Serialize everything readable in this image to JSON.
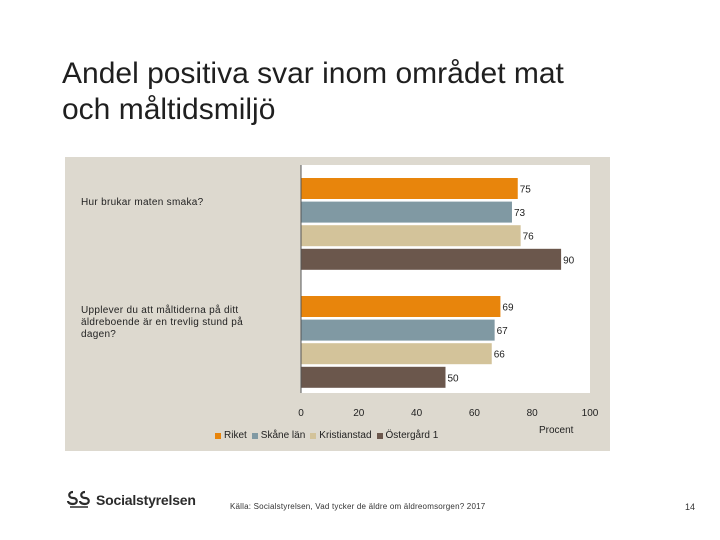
{
  "slide": {
    "title_line1": "Andel positiva svar inom området mat",
    "title_line2": "och måltidsmiljö",
    "source": "Källa: Socialstyrelsen, Vad tycker de äldre om äldreomsorgen? 2017",
    "page_number": "14",
    "logo_text": "Socialstyrelsen"
  },
  "chart_data": {
    "type": "bar",
    "orientation": "horizontal",
    "categories": [
      "Hur brukar maten smaka?",
      "Upplever du att måltiderna på ditt äldreboende är en trevlig stund på dagen?"
    ],
    "series": [
      {
        "name": "Riket",
        "color": "#e8850c",
        "values": [
          75,
          69
        ]
      },
      {
        "name": "Skåne län",
        "color": "#8099a3",
        "values": [
          73,
          67
        ]
      },
      {
        "name": "Kristianstad",
        "color": "#d3c39a",
        "values": [
          76,
          66
        ]
      },
      {
        "name": "Östergård 1",
        "color": "#6b574c",
        "values": [
          90,
          50
        ]
      }
    ],
    "xlim": [
      0,
      100
    ],
    "xticks": [
      "0",
      "20",
      "40",
      "60",
      "80",
      "100"
    ],
    "xlabel": "Procent",
    "legend_position": "bottom",
    "grid": false
  }
}
